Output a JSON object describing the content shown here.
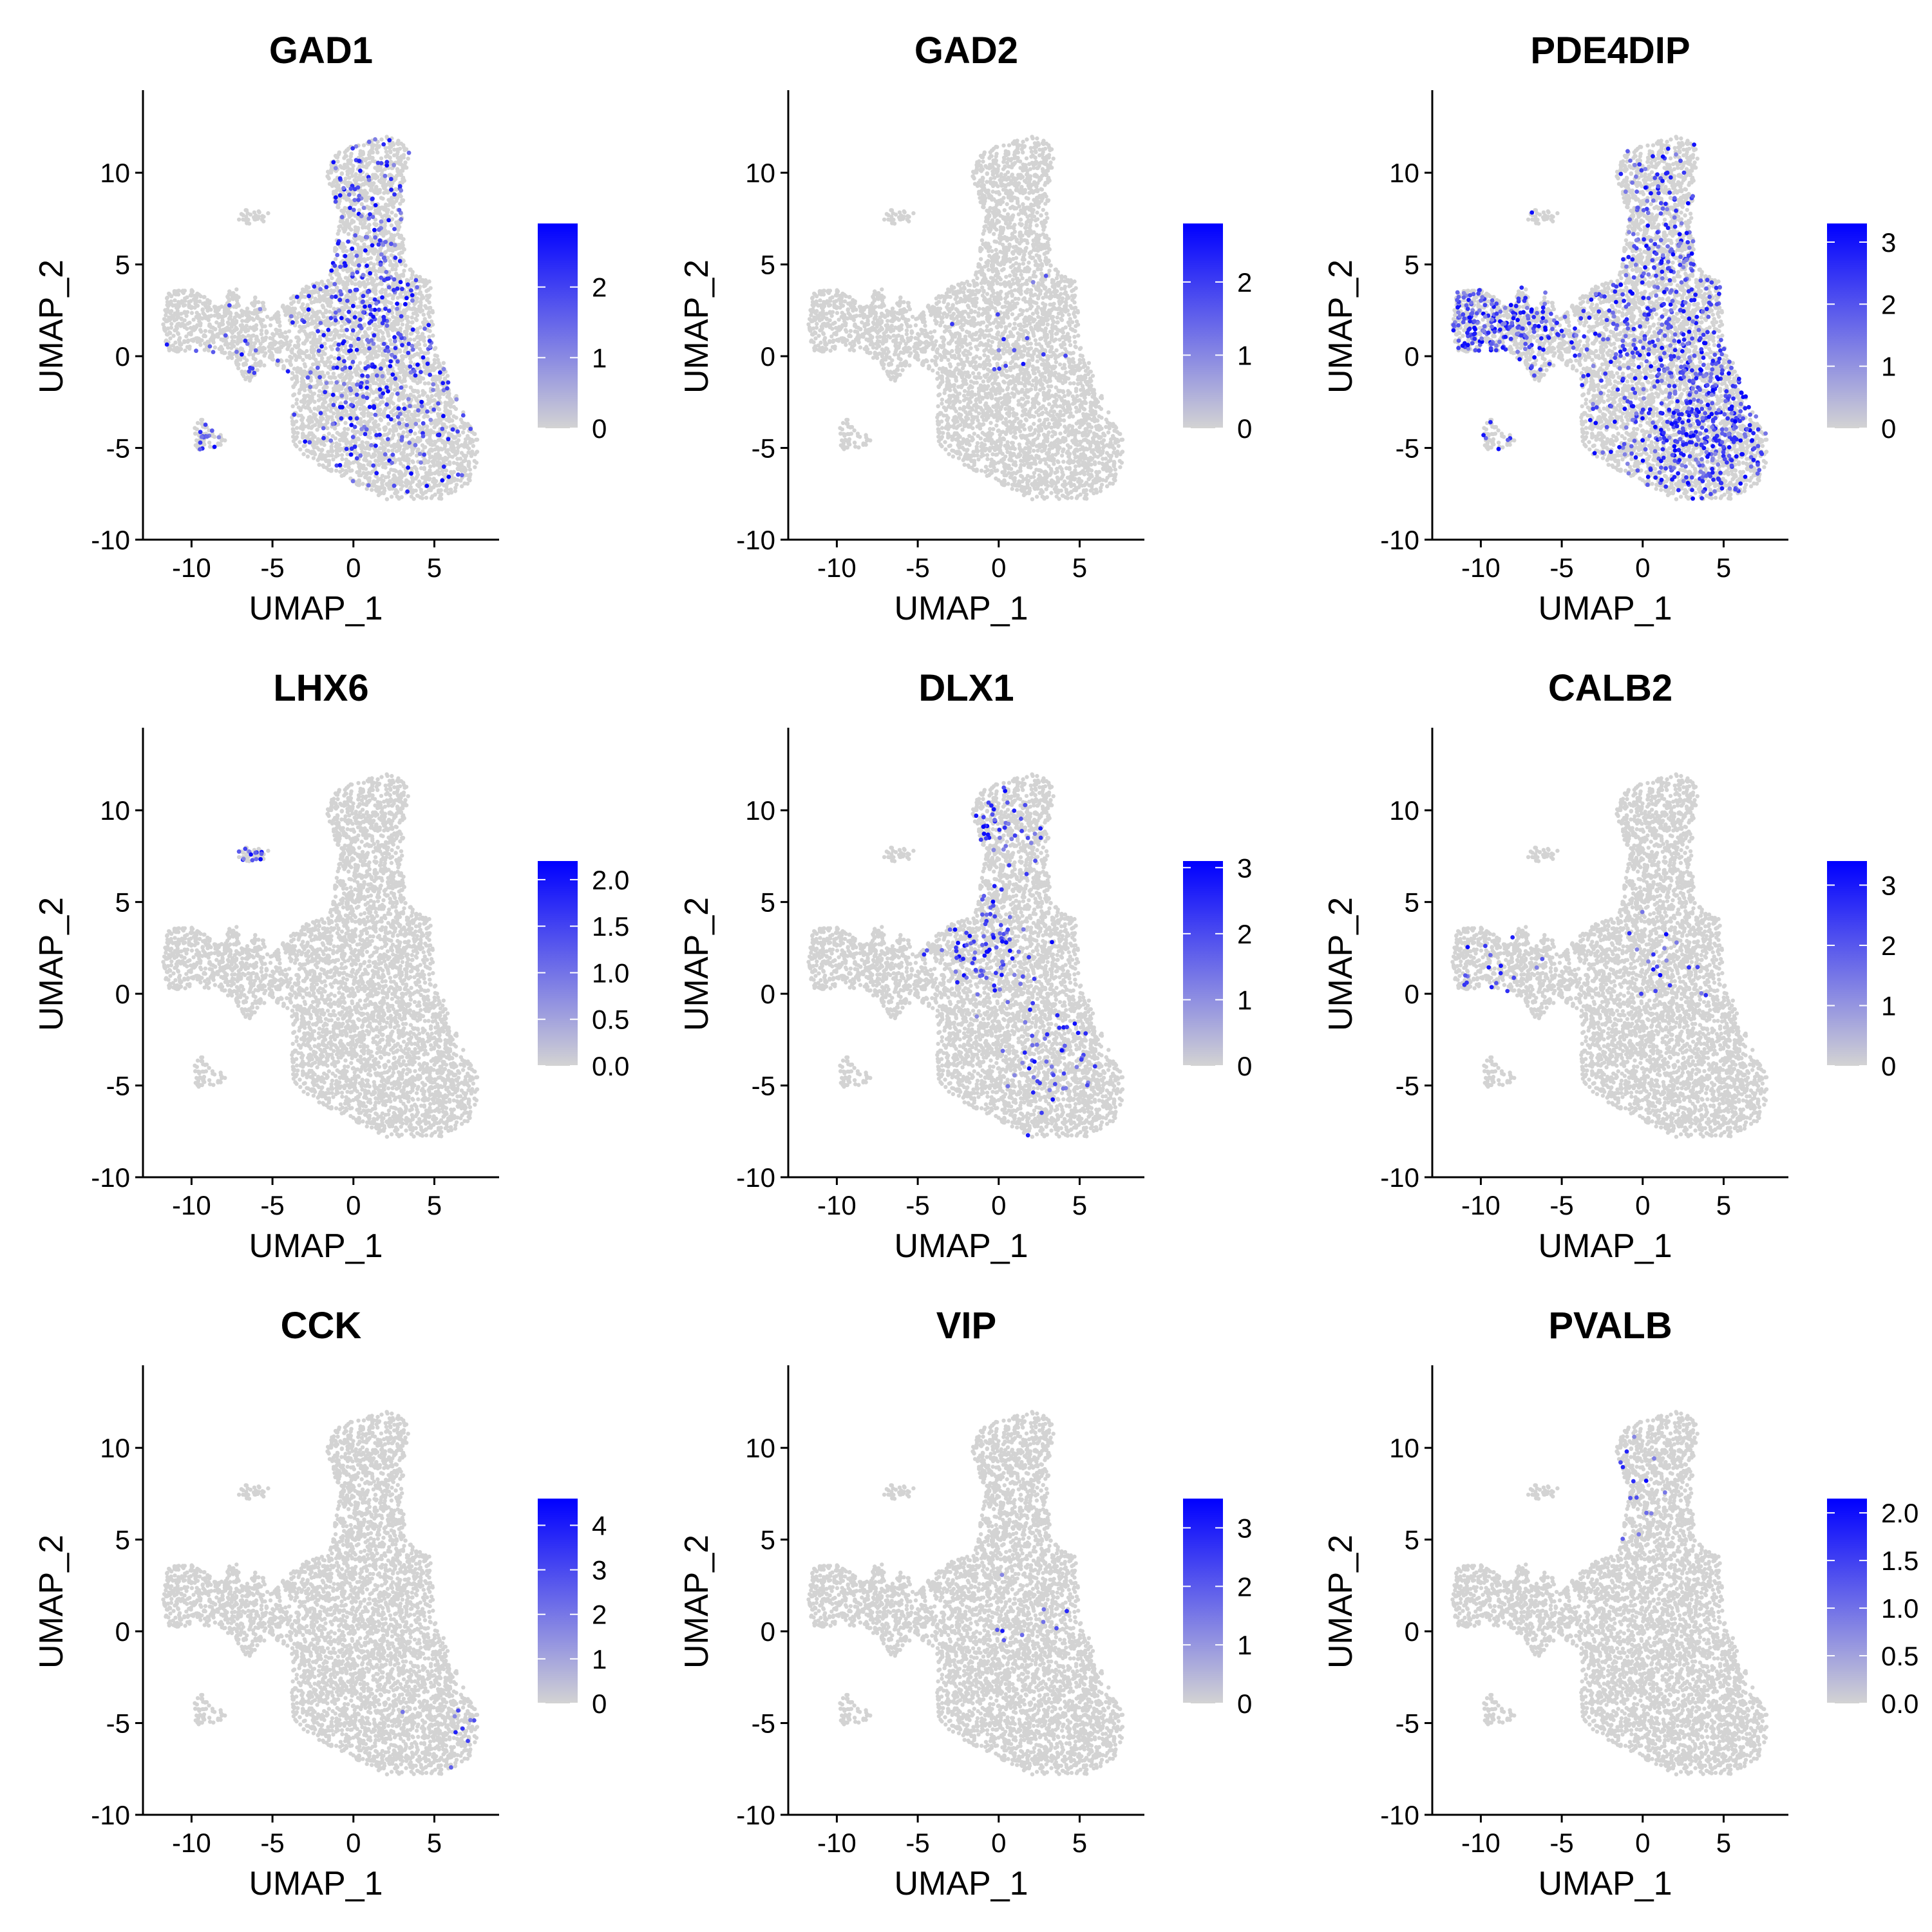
{
  "chart_data": [
    {
      "type": "scatter",
      "title": "GAD1",
      "xlabel": "UMAP_1",
      "ylabel": "UMAP_2",
      "xlim": [
        -13,
        9
      ],
      "ylim": [
        -10,
        14.5
      ],
      "xticks": [
        -10,
        -5,
        0,
        5
      ],
      "yticks": [
        -10,
        -5,
        0,
        5,
        10
      ],
      "legend": {
        "placement": "right",
        "min": 0,
        "max": 2.9,
        "ticks": [
          0,
          1,
          2
        ],
        "low_color": "#d3d3d3",
        "high_color": "#0000ff"
      },
      "expression": {
        "density": 0.1,
        "hotspots": [
          {
            "x": 1.5,
            "y": 1.0,
            "weight": 3
          },
          {
            "x": 1.5,
            "y": 8.0,
            "weight": 2
          },
          {
            "x": 3.5,
            "y": -4.0,
            "weight": 1.5
          },
          {
            "x": -9.0,
            "y": -4.3,
            "weight": 0.6
          }
        ]
      }
    },
    {
      "type": "scatter",
      "title": "GAD2",
      "xlabel": "UMAP_1",
      "ylabel": "UMAP_2",
      "xlim": [
        -13,
        9
      ],
      "ylim": [
        -10,
        14.5
      ],
      "xticks": [
        -10,
        -5,
        0,
        5
      ],
      "yticks": [
        -10,
        -5,
        0,
        5,
        10
      ],
      "legend": {
        "placement": "right",
        "min": 0,
        "max": 2.8,
        "ticks": [
          0,
          1,
          2
        ],
        "low_color": "#d3d3d3",
        "high_color": "#0000ff"
      },
      "expression": {
        "density": 0.003,
        "hotspots": [
          {
            "x": 1.0,
            "y": 1.0,
            "weight": 1
          }
        ]
      }
    },
    {
      "type": "scatter",
      "title": "PDE4DIP",
      "xlabel": "UMAP_1",
      "ylabel": "UMAP_2",
      "xlim": [
        -13,
        9
      ],
      "ylim": [
        -10,
        14.5
      ],
      "xticks": [
        -10,
        -5,
        0,
        5
      ],
      "yticks": [
        -10,
        -5,
        0,
        5,
        10
      ],
      "legend": {
        "placement": "right",
        "min": 0,
        "max": 3.3,
        "ticks": [
          0,
          1,
          2,
          3
        ],
        "low_color": "#d3d3d3",
        "high_color": "#0000ff"
      },
      "expression": {
        "density": 0.22,
        "hotspots": [
          {
            "x": 4.0,
            "y": -4.0,
            "weight": 3
          },
          {
            "x": -10.0,
            "y": 1.5,
            "weight": 1.5
          },
          {
            "x": 1.0,
            "y": 2.0,
            "weight": 1.5
          },
          {
            "x": 1.5,
            "y": 8.0,
            "weight": 1
          }
        ]
      }
    },
    {
      "type": "scatter",
      "title": "LHX6",
      "xlabel": "UMAP_1",
      "ylabel": "UMAP_2",
      "xlim": [
        -13,
        9
      ],
      "ylim": [
        -10,
        14.5
      ],
      "xticks": [
        -10,
        -5,
        0,
        5
      ],
      "yticks": [
        -10,
        -5,
        0,
        5,
        10
      ],
      "legend": {
        "placement": "right",
        "min": 0,
        "max": 2.2,
        "ticks": [
          0.0,
          0.5,
          1.0,
          1.5,
          2.0
        ],
        "tick_labels": [
          "0.0",
          "0.5",
          "1.0",
          "1.5",
          "2.0"
        ],
        "low_color": "#d3d3d3",
        "high_color": "#0000ff"
      },
      "expression": {
        "density": 0.003,
        "hotspots": [
          {
            "x": -6.3,
            "y": 7.3,
            "weight": 1
          }
        ]
      }
    },
    {
      "type": "scatter",
      "title": "DLX1",
      "xlabel": "UMAP_1",
      "ylabel": "UMAP_2",
      "xlim": [
        -13,
        9
      ],
      "ylim": [
        -10,
        14.5
      ],
      "xticks": [
        -10,
        -5,
        0,
        5
      ],
      "yticks": [
        -10,
        -5,
        0,
        5,
        10
      ],
      "legend": {
        "placement": "right",
        "min": 0,
        "max": 3.1,
        "ticks": [
          0,
          1,
          2,
          3
        ],
        "low_color": "#d3d3d3",
        "high_color": "#0000ff"
      },
      "expression": {
        "density": 0.04,
        "hotspots": [
          {
            "x": -1.0,
            "y": 2.5,
            "weight": 2
          },
          {
            "x": 0.0,
            "y": 9.0,
            "weight": 1
          },
          {
            "x": 3.0,
            "y": -4.0,
            "weight": 1
          }
        ]
      }
    },
    {
      "type": "scatter",
      "title": "CALB2",
      "xlabel": "UMAP_1",
      "ylabel": "UMAP_2",
      "xlim": [
        -13,
        9
      ],
      "ylim": [
        -10,
        14.5
      ],
      "xticks": [
        -10,
        -5,
        0,
        5
      ],
      "yticks": [
        -10,
        -5,
        0,
        5,
        10
      ],
      "legend": {
        "placement": "right",
        "min": 0,
        "max": 3.4,
        "ticks": [
          0,
          1,
          2,
          3
        ],
        "low_color": "#d3d3d3",
        "high_color": "#0000ff"
      },
      "expression": {
        "density": 0.008,
        "hotspots": [
          {
            "x": -9.0,
            "y": 1.0,
            "weight": 1
          },
          {
            "x": 1.5,
            "y": 2.0,
            "weight": 1
          }
        ]
      }
    },
    {
      "type": "scatter",
      "title": "CCK",
      "xlabel": "UMAP_1",
      "ylabel": "UMAP_2",
      "xlim": [
        -13,
        9
      ],
      "ylim": [
        -10,
        14.5
      ],
      "xticks": [
        -10,
        -5,
        0,
        5
      ],
      "yticks": [
        -10,
        -5,
        0,
        5,
        10
      ],
      "legend": {
        "placement": "right",
        "min": 0,
        "max": 4.6,
        "ticks": [
          0,
          1,
          2,
          3,
          4
        ],
        "low_color": "#d3d3d3",
        "high_color": "#0000ff"
      },
      "expression": {
        "density": 0.002,
        "hotspots": [
          {
            "x": 7.0,
            "y": -5.0,
            "weight": 1
          }
        ]
      }
    },
    {
      "type": "scatter",
      "title": "VIP",
      "xlabel": "UMAP_1",
      "ylabel": "UMAP_2",
      "xlim": [
        -13,
        9
      ],
      "ylim": [
        -10,
        14.5
      ],
      "xticks": [
        -10,
        -5,
        0,
        5
      ],
      "yticks": [
        -10,
        -5,
        0,
        5,
        10
      ],
      "legend": {
        "placement": "right",
        "min": 0,
        "max": 3.5,
        "ticks": [
          0,
          1,
          2,
          3
        ],
        "low_color": "#d3d3d3",
        "high_color": "#0000ff"
      },
      "expression": {
        "density": 0.002,
        "hotspots": [
          {
            "x": 1.0,
            "y": 1.0,
            "weight": 1
          }
        ]
      }
    },
    {
      "type": "scatter",
      "title": "PVALB",
      "xlabel": "UMAP_1",
      "ylabel": "UMAP_2",
      "xlim": [
        -13,
        9
      ],
      "ylim": [
        -10,
        14.5
      ],
      "xticks": [
        -10,
        -5,
        0,
        5
      ],
      "yticks": [
        -10,
        -5,
        0,
        5,
        10
      ],
      "legend": {
        "placement": "right",
        "min": 0,
        "max": 2.15,
        "ticks": [
          0.0,
          0.5,
          1.0,
          1.5,
          2.0
        ],
        "tick_labels": [
          "0.0",
          "0.5",
          "1.0",
          "1.5",
          "2.0"
        ],
        "low_color": "#d3d3d3",
        "high_color": "#0000ff"
      },
      "expression": {
        "density": 0.003,
        "hotspots": [
          {
            "x": -2.3,
            "y": 8.0,
            "weight": 1
          }
        ]
      }
    }
  ],
  "embedding_shape": {
    "main_body": {
      "polygon": [
        [
          -5.0,
          2.3
        ],
        [
          -3.0,
          3.8
        ],
        [
          -1.5,
          4.2
        ],
        [
          -0.8,
          7.5
        ],
        [
          -1.7,
          10.0
        ],
        [
          -1.0,
          11.2
        ],
        [
          2.0,
          12.0
        ],
        [
          3.5,
          11.5
        ],
        [
          3.0,
          8.0
        ],
        [
          3.2,
          5.0
        ],
        [
          4.8,
          4.0
        ],
        [
          5.0,
          1.0
        ],
        [
          6.5,
          -2.5
        ],
        [
          7.8,
          -4.5
        ],
        [
          7.5,
          -6.8
        ],
        [
          5.5,
          -7.8
        ],
        [
          2.0,
          -7.8
        ],
        [
          -2.0,
          -6.0
        ],
        [
          -3.8,
          -5.0
        ],
        [
          -3.8,
          -1.0
        ],
        [
          -5.5,
          0.0
        ],
        [
          -6.8,
          0.3
        ],
        [
          -7.0,
          2.0
        ],
        [
          -6.0,
          3.5
        ]
      ]
    },
    "left_cluster": {
      "polygon": [
        [
          -11.5,
          3.5
        ],
        [
          -10.0,
          3.7
        ],
        [
          -8.3,
          2.8
        ],
        [
          -7.3,
          4.0
        ],
        [
          -6.5,
          1.5
        ],
        [
          -5.5,
          -0.5
        ],
        [
          -6.5,
          -1.5
        ],
        [
          -7.5,
          -0.2
        ],
        [
          -9.0,
          0.3
        ],
        [
          -11.5,
          0.2
        ],
        [
          -11.8,
          1.5
        ]
      ]
    },
    "small_cluster": {
      "polygon": [
        [
          -10.0,
          -4.0
        ],
        [
          -9.3,
          -3.0
        ],
        [
          -8.8,
          -4.0
        ],
        [
          -7.5,
          -4.6
        ],
        [
          -8.3,
          -5.0
        ],
        [
          -9.5,
          -5.2
        ],
        [
          -10.0,
          -4.8
        ]
      ]
    },
    "tiny_cluster": {
      "polygon": [
        [
          -7.4,
          7.6
        ],
        [
          -6.6,
          8.0
        ],
        [
          -5.1,
          7.8
        ],
        [
          -5.5,
          7.3
        ],
        [
          -6.7,
          7.2
        ]
      ]
    },
    "point_color": "#d3d3d3"
  }
}
